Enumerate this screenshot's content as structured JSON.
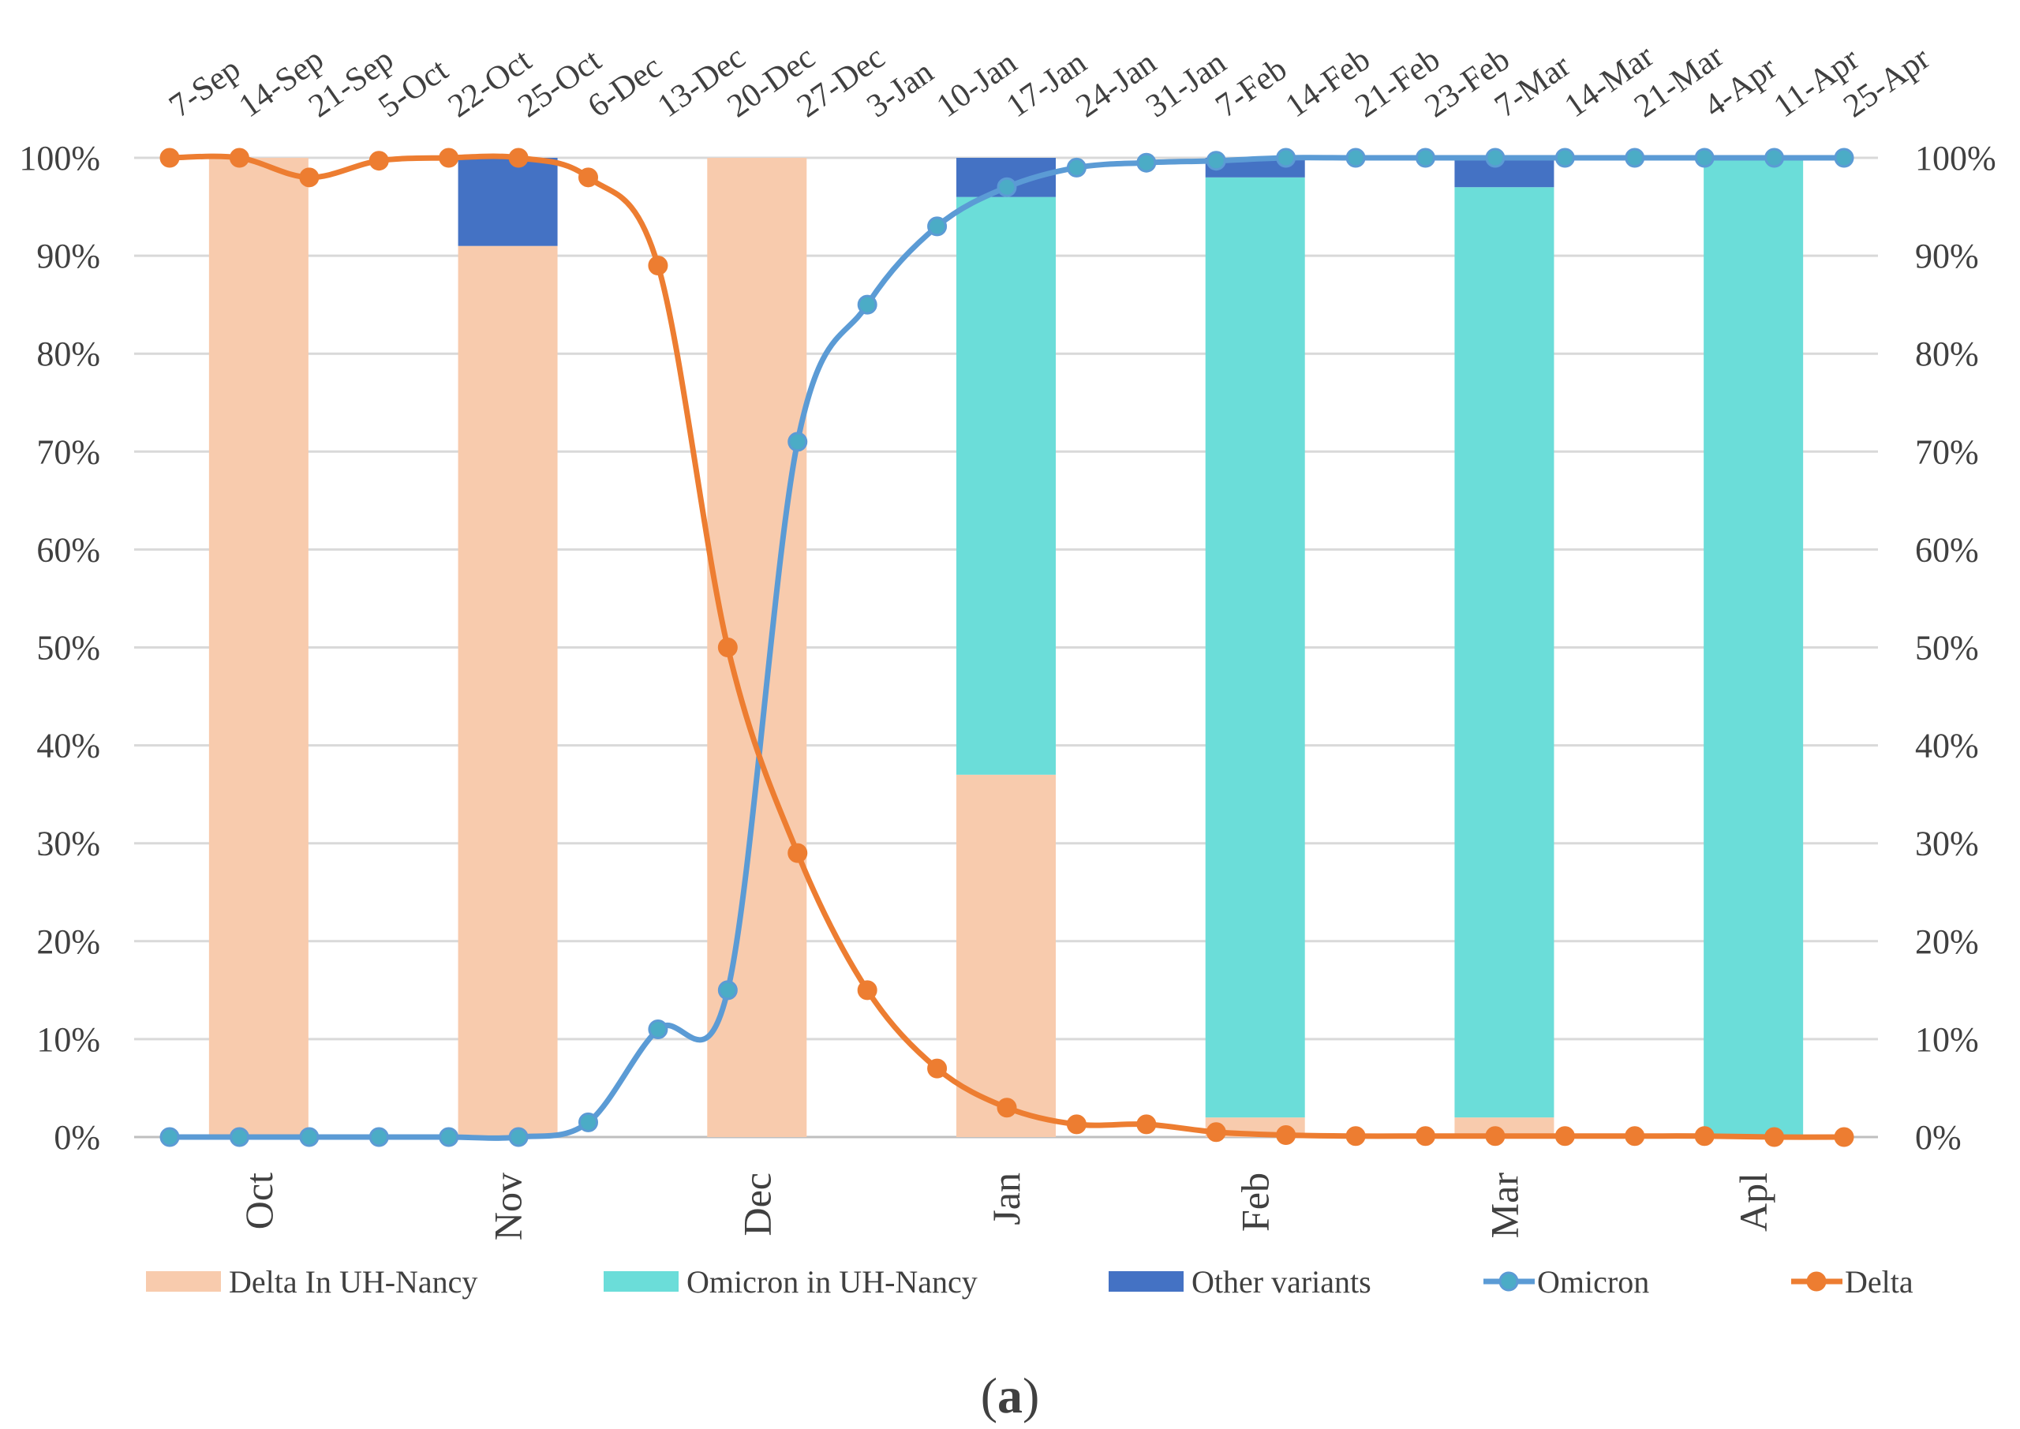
{
  "chart_data": {
    "type": "bar+line",
    "panel_label_open": "(",
    "panel_label_letter": "a",
    "panel_label_close": ")",
    "bar_categories": [
      "Oct",
      "Nov",
      "Dec",
      "Jan",
      "Feb",
      "Mar",
      "Apl"
    ],
    "bar_series": [
      {
        "name": "Delta In UH-Nancy",
        "color": "#f8cbad",
        "values": [
          100,
          91,
          100,
          37,
          2,
          2,
          0
        ]
      },
      {
        "name": "Omicron in UH-Nancy",
        "color": "#6bddd9",
        "values": [
          0,
          0,
          0,
          59,
          96,
          95,
          100
        ]
      },
      {
        "name": "Other variants",
        "color": "#4472c4",
        "values": [
          0,
          9,
          0,
          4,
          2,
          3,
          0
        ]
      }
    ],
    "line_x": [
      "7-Sep",
      "14-Sep",
      "21-Sep",
      "5-Oct",
      "22-Oct",
      "25-Oct",
      "6-Dec",
      "13-Dec",
      "20-Dec",
      "27-Dec",
      "3-Jan",
      "10-Jan",
      "17-Jan",
      "24-Jan",
      "31-Jan",
      "7-Feb",
      "14-Feb",
      "21-Feb",
      "23-Feb",
      "7-Mar",
      "14-Mar",
      "21-Mar",
      "4-Apr",
      "11-Apr",
      "25-Apr"
    ],
    "line_series": [
      {
        "name": "Omicron",
        "color": "#5b9bd5",
        "values": [
          0,
          0,
          0,
          0,
          0,
          0,
          1.5,
          11,
          15,
          71,
          85,
          93,
          97,
          99,
          99.5,
          99.7,
          100,
          100,
          100,
          100,
          100,
          100,
          100,
          100,
          100
        ]
      },
      {
        "name": "Delta",
        "color": "#ed7d31",
        "values": [
          100,
          100,
          98,
          99.7,
          100,
          100,
          98,
          89,
          50,
          29,
          15,
          7,
          3,
          1.3,
          1.3,
          0.5,
          0.2,
          0.1,
          0.1,
          0.1,
          0.1,
          0.1,
          0.1,
          0,
          0
        ]
      }
    ],
    "y_ticks": [
      "0%",
      "10%",
      "20%",
      "30%",
      "40%",
      "50%",
      "60%",
      "70%",
      "80%",
      "90%",
      "100%"
    ],
    "ylim": [
      0,
      100
    ],
    "legend_position": "bottom",
    "grid": true
  }
}
